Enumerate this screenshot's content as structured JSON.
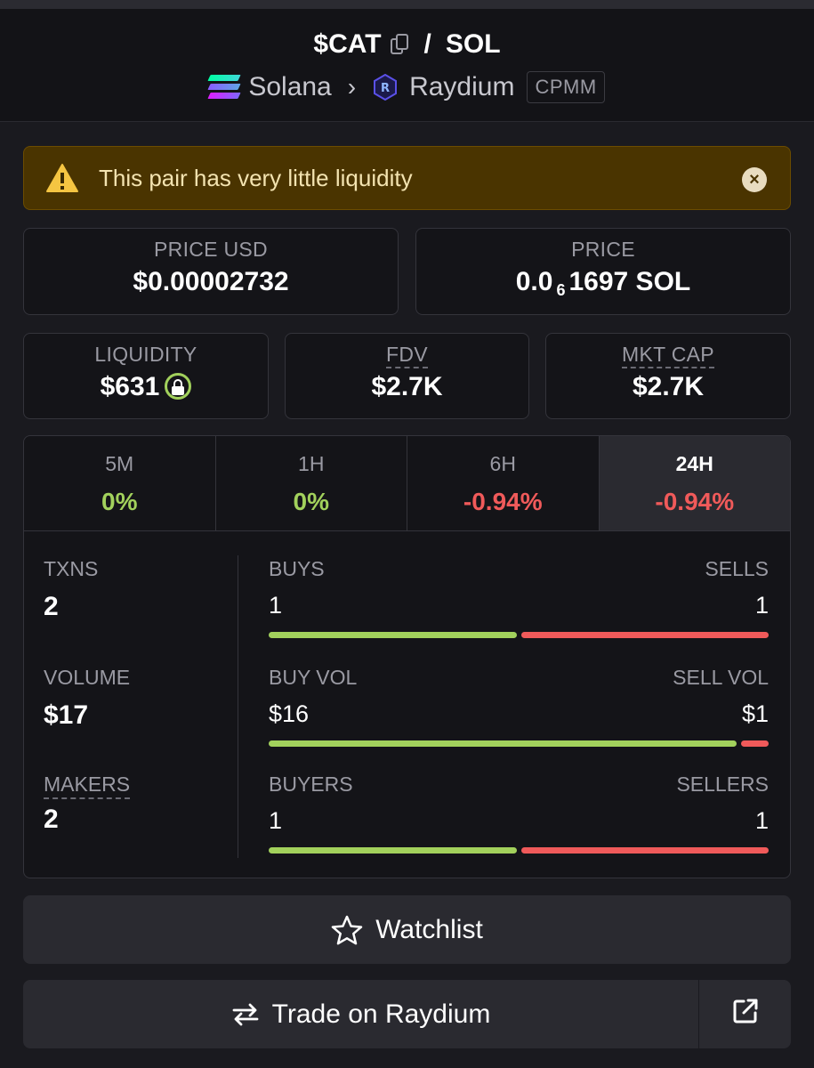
{
  "header": {
    "base_symbol": "$CAT",
    "separator": "/",
    "quote_symbol": "SOL",
    "chain": "Solana",
    "dex": "Raydium",
    "pool_type": "CPMM"
  },
  "warning": {
    "message": "This pair has very little liquidity"
  },
  "price_usd": {
    "label": "PRICE USD",
    "value": "$0.00002732"
  },
  "price_native": {
    "label": "PRICE",
    "prefix": "0.0",
    "zeros": "6",
    "suffix": "1697 SOL"
  },
  "liquidity": {
    "label": "LIQUIDITY",
    "value": "$631"
  },
  "fdv": {
    "label": "FDV",
    "value": "$2.7K"
  },
  "mkt_cap": {
    "label": "MKT CAP",
    "value": "$2.7K"
  },
  "timeframes": [
    {
      "label": "5M",
      "change": "0%"
    },
    {
      "label": "1H",
      "change": "0%"
    },
    {
      "label": "6H",
      "change": "-0.94%"
    },
    {
      "label": "24H",
      "change": "-0.94%"
    }
  ],
  "stats": {
    "txns_label": "TXNS",
    "txns": "2",
    "volume_label": "VOLUME",
    "volume": "$17",
    "makers_label": "MAKERS",
    "makers": "2"
  },
  "splits": {
    "buys_label": "BUYS",
    "sells_label": "SELLS",
    "buys": "1",
    "sells": "1",
    "buys_share": 0.5,
    "buy_vol_label": "BUY VOL",
    "sell_vol_label": "SELL VOL",
    "buy_vol": "$16",
    "sell_vol": "$1",
    "buy_vol_share": 0.94,
    "buyers_label": "BUYERS",
    "sellers_label": "SELLERS",
    "buyers": "1",
    "sellers": "1",
    "buyers_share": 0.5
  },
  "actions": {
    "watchlist": "Watchlist",
    "trade": "Trade on Raydium"
  },
  "colors": {
    "positive": "#a2d15c",
    "negative": "#f05a5a",
    "warning_bg": "#4a3400"
  }
}
